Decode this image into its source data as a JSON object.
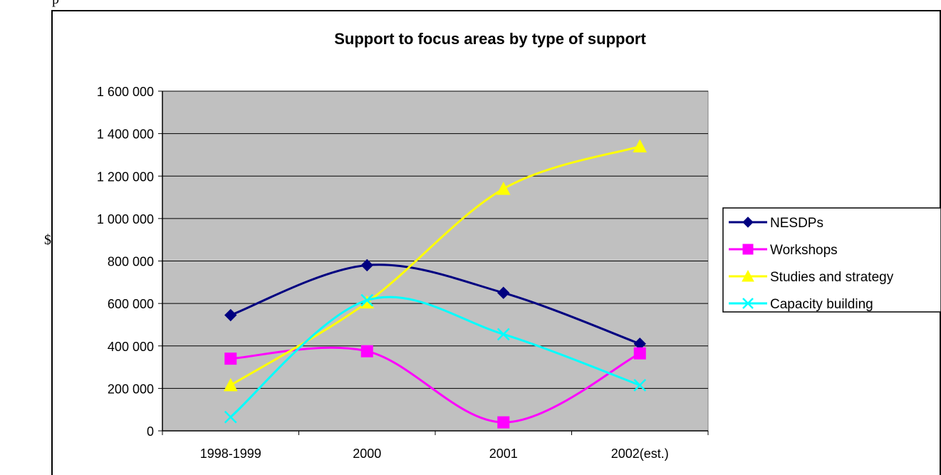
{
  "page": {
    "top_fragment": "p"
  },
  "chart_data": {
    "type": "line",
    "title": "Support to focus areas by type of support",
    "xlabel": "",
    "ylabel": "$",
    "categories": [
      "1998-1999",
      "2000",
      "2001",
      "2002(est.)"
    ],
    "ylim": [
      0,
      1600000
    ],
    "yticks": [
      0,
      200000,
      400000,
      600000,
      800000,
      1000000,
      1200000,
      1400000,
      1600000
    ],
    "ytick_labels": [
      "0",
      "200 000",
      "400 000",
      "600 000",
      "800 000",
      "1 000 000",
      "1 200 000",
      "1 400 000",
      "1 600 000"
    ],
    "grid": true,
    "plot_background": "#c0c0c0",
    "legend_position": "right",
    "smoothed": true,
    "series": [
      {
        "name": "NESDPs",
        "values": [
          545000,
          780000,
          650000,
          410000
        ],
        "color": "#000080",
        "marker": "diamond"
      },
      {
        "name": "Workshops",
        "values": [
          340000,
          375000,
          40000,
          365000
        ],
        "color": "#ff00ff",
        "marker": "square"
      },
      {
        "name": "Studies and strategy",
        "values": [
          215000,
          605000,
          1140000,
          1340000
        ],
        "color": "#ffff00",
        "marker": "triangle"
      },
      {
        "name": "Capacity building",
        "values": [
          65000,
          615000,
          455000,
          215000
        ],
        "color": "#00ffff",
        "marker": "x"
      }
    ]
  }
}
